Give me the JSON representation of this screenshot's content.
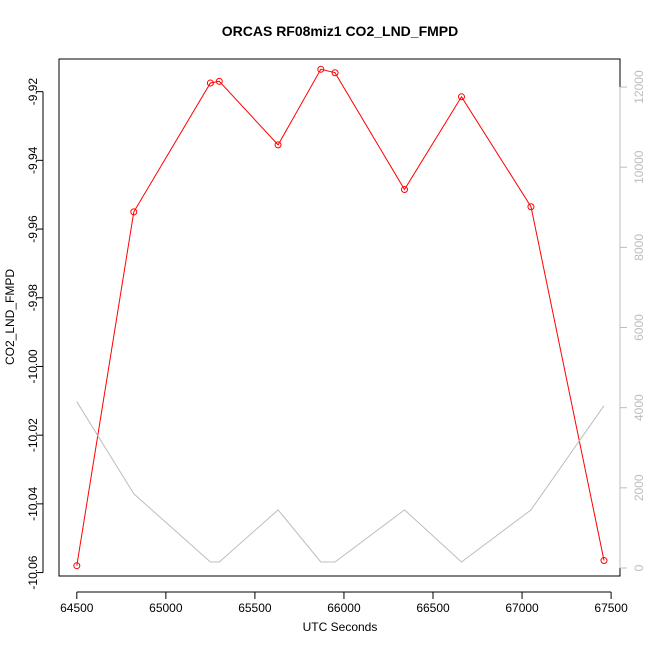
{
  "chart_data": {
    "type": "line",
    "title": "ORCAS RF08miz1 CO2_LND_FMPD",
    "xlabel": "UTC Seconds",
    "ylabel": "CO2_LND_FMPD",
    "y2label": "",
    "xlim": [
      64400,
      67550
    ],
    "ylim": [
      -10.061,
      -9.9105
    ],
    "y2lim": [
      -200,
      12700
    ],
    "x_ticks": [
      64500,
      65000,
      65500,
      66000,
      66500,
      67000,
      67500
    ],
    "y_ticks": [
      -10.06,
      -10.04,
      -10.02,
      -10.0,
      -9.98,
      -9.96,
      -9.94,
      -9.92
    ],
    "y_tick_labels": [
      "-10.06",
      "-10.04",
      "-10.02",
      "-10.00",
      "-9.98",
      "-9.96",
      "-9.94",
      "-9.92"
    ],
    "y2_ticks": [
      0,
      2000,
      4000,
      6000,
      8000,
      10000,
      12000
    ],
    "grid": false,
    "series": [
      {
        "axis": "left",
        "color": "#ff0000",
        "marker": "open-circle",
        "x": [
          64500,
          64820,
          65250,
          65300,
          65630,
          65870,
          65950,
          66340,
          66660,
          67050,
          67460
        ],
        "values": [
          -10.058,
          -9.955,
          -9.9175,
          -9.917,
          -9.9355,
          -9.9135,
          -9.9145,
          -9.9485,
          -9.9215,
          -9.9535,
          -10.0565
        ]
      },
      {
        "axis": "right",
        "color": "#bdbdbd",
        "marker": "none",
        "x": [
          64500,
          64820,
          65250,
          65300,
          65630,
          65870,
          65950,
          66340,
          66660,
          67050,
          67460
        ],
        "values": [
          4150,
          1850,
          150,
          150,
          1450,
          150,
          150,
          1450,
          150,
          1450,
          4050
        ]
      }
    ]
  }
}
